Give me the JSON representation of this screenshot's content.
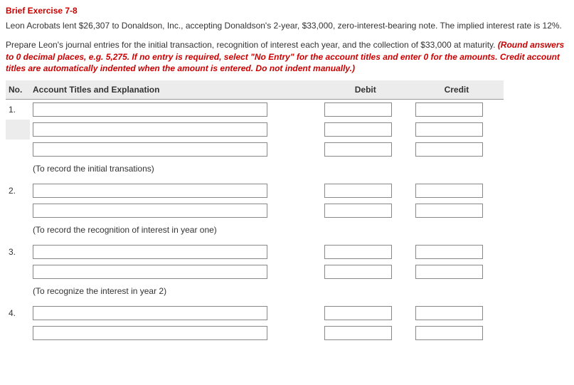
{
  "title": "Brief Exercise 7-8",
  "paragraph1": "Leon Acrobats lent $26,307 to Donaldson, Inc., accepting Donaldson's 2-year, $33,000, zero-interest-bearing note. The implied interest rate is 12%.",
  "paragraph2_plain": "Prepare Leon's journal entries for the initial transaction, recognition of interest each year, and the collection of $33,000 at maturity. ",
  "paragraph2_red": "(Round answers to 0 decimal places, e.g. 5,275. If no entry is required, select \"No Entry\" for the account titles and enter 0 for the amounts. Credit account titles are automatically indented when the amount is entered. Do not indent manually.)",
  "headers": {
    "no": "No.",
    "account": "Account Titles and Explanation",
    "debit": "Debit",
    "credit": "Credit"
  },
  "rows": {
    "r1": "1.",
    "r2": "2.",
    "r3": "3.",
    "r4": "4."
  },
  "notes": {
    "n1": "(To record the initial transations)",
    "n2": "(To record the recognition of interest in year one)",
    "n3": "(To recognize the interest in year 2)"
  }
}
